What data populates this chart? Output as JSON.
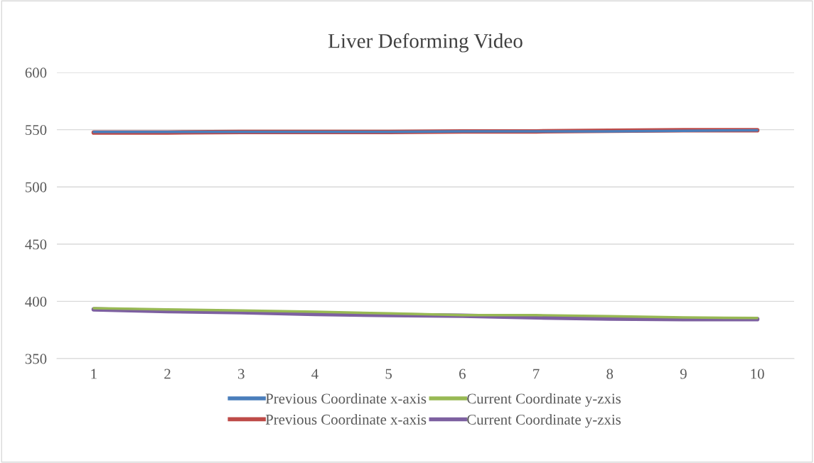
{
  "chart_data": {
    "type": "line",
    "title": "Liver Deforming Video",
    "categories": [
      "1",
      "2",
      "3",
      "4",
      "5",
      "6",
      "7",
      "8",
      "9",
      "10"
    ],
    "series": [
      {
        "name": "Previous Coordinate x-axis",
        "color": "#4a7ebb",
        "values": [
          548,
          548,
          548,
          548,
          548,
          548.5,
          548.5,
          548.5,
          549,
          549.5
        ]
      },
      {
        "name": "Previous Coordinate x-axis",
        "color": "#be4b48",
        "values": [
          547.5,
          547.5,
          548,
          548,
          548,
          548.5,
          548.5,
          549,
          549.5,
          549.5
        ]
      },
      {
        "name": "Current Coordinate y-zxis",
        "color": "#98b954",
        "values": [
          394,
          393,
          392,
          391,
          389.5,
          388,
          388,
          387,
          386,
          385.5
        ]
      },
      {
        "name": "Current Coordinate y-zxis",
        "color": "#7d60a0",
        "values": [
          393,
          391.5,
          390.5,
          389,
          388,
          387.5,
          386,
          385,
          384.5,
          384.5
        ]
      }
    ],
    "ylim": [
      350,
      600
    ],
    "yticks": [
      350,
      400,
      450,
      500,
      550,
      600
    ],
    "grid": "y",
    "legend": "bottom",
    "marker": "none",
    "line_style": "solid"
  }
}
